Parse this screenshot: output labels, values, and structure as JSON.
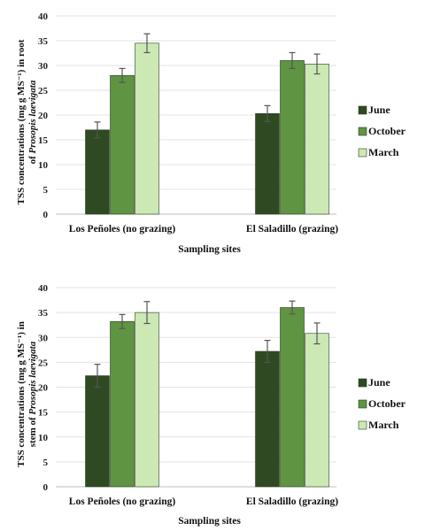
{
  "chart_data": [
    {
      "type": "bar",
      "ylabel_line1": "TSS concentrations (mg g MS⁻¹) in root",
      "ylabel_line2_prefix": "of ",
      "ylabel_line2_species": "Prosopis laevigata",
      "xlabel": "Sampling sites",
      "categories": [
        "Los Peñoles (no grazing)",
        "El Saladillo (grazing)"
      ],
      "ylim": [
        0,
        40
      ],
      "yticks": [
        0,
        5,
        10,
        15,
        20,
        25,
        30,
        35,
        40
      ],
      "grid": true,
      "legend_position": "right",
      "series": [
        {
          "name": "June",
          "values": [
            17.0,
            20.3
          ],
          "errors": [
            1.6,
            1.6
          ],
          "color": "#2f4a22"
        },
        {
          "name": "October",
          "values": [
            28.0,
            31.0
          ],
          "errors": [
            1.4,
            1.6
          ],
          "color": "#5f9443"
        },
        {
          "name": "March",
          "values": [
            34.5,
            30.3
          ],
          "errors": [
            1.9,
            2.0
          ],
          "color": "#cce8b5"
        }
      ]
    },
    {
      "type": "bar",
      "ylabel_line1": "TSS concentrations (mg g MS⁻¹) in",
      "ylabel_line2_prefix": "stem of ",
      "ylabel_line2_species": "Prosopis laevigata",
      "xlabel": "Sampling sites",
      "categories": [
        "Los Peñoles (no grazing)",
        "El Saladillo (grazing)"
      ],
      "ylim": [
        0,
        40
      ],
      "yticks": [
        0,
        5,
        10,
        15,
        20,
        25,
        30,
        35,
        40
      ],
      "grid": true,
      "legend_position": "right",
      "series": [
        {
          "name": "June",
          "values": [
            22.3,
            27.2
          ],
          "errors": [
            2.3,
            2.2
          ],
          "color": "#2f4a22"
        },
        {
          "name": "October",
          "values": [
            33.2,
            36.0
          ],
          "errors": [
            1.4,
            1.3
          ],
          "color": "#5f9443"
        },
        {
          "name": "March",
          "values": [
            35.0,
            30.8
          ],
          "errors": [
            2.2,
            2.1
          ],
          "color": "#cce8b5"
        }
      ]
    }
  ]
}
